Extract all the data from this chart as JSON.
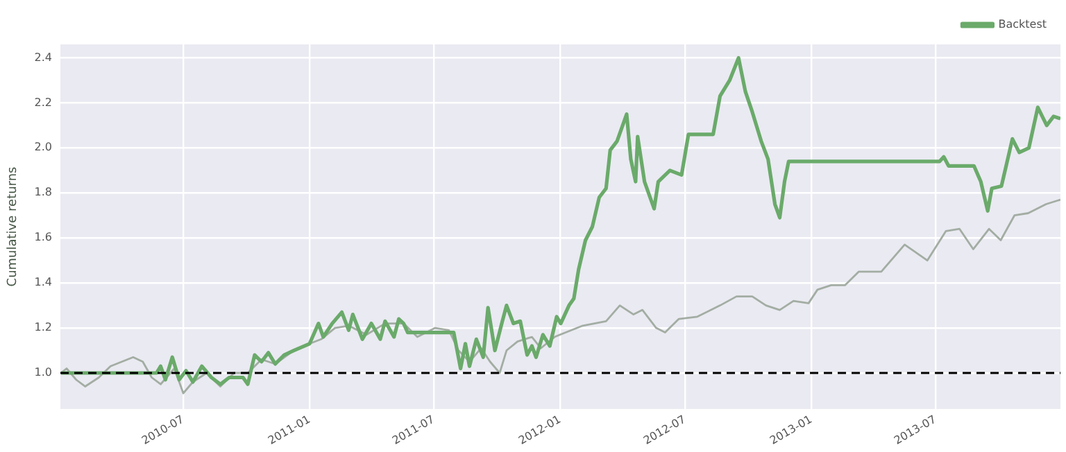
{
  "chart_data": {
    "type": "line",
    "ylabel": "Cumulative returns",
    "xlim": [
      "2010-01-03",
      "2013-12-30"
    ],
    "xticks": [
      "2010-07",
      "2011-01",
      "2011-07",
      "2012-01",
      "2012-07",
      "2013-01",
      "2013-07"
    ],
    "ylim": [
      0.84,
      2.46
    ],
    "yticks": [
      {
        "value": 1,
        "label": "1.0"
      },
      1.2,
      1.4,
      1.6,
      1.8,
      {
        "value": 2,
        "label": "2.0"
      },
      2.2,
      2.4
    ],
    "grid": true,
    "legend": "top right",
    "marker": "none",
    "line_style": "solid",
    "ref_lines": [
      {
        "axis": "y",
        "value": 1.0,
        "color": "#000000",
        "line_style": "dashed"
      }
    ],
    "series": [
      {
        "color": "#a3ada3",
        "x": [
          "2010-01-04",
          "2010-01-12",
          "2010-01-26",
          "2010-02-08",
          "2010-02-28",
          "2010-03-17",
          "2010-04-19",
          "2010-05-03",
          "2010-05-16",
          "2010-05-29",
          "2010-06-18",
          "2010-07-01",
          "2010-07-15",
          "2010-08-04",
          "2010-08-24",
          "2010-09-13",
          "2010-10-03",
          "2010-10-23",
          "2010-11-12",
          "2010-12-09",
          "2011-01-01",
          "2011-01-18",
          "2011-02-07",
          "2011-02-27",
          "2011-03-25",
          "2011-04-21",
          "2011-05-18",
          "2011-06-07",
          "2011-07-03",
          "2011-07-23",
          "2011-08-06",
          "2011-08-22",
          "2011-09-08",
          "2011-09-21",
          "2011-10-05",
          "2011-10-15",
          "2011-10-31",
          "2011-11-21",
          "2011-12-04",
          "2011-12-24",
          "2012-01-01",
          "2012-02-03",
          "2012-03-08",
          "2012-03-28",
          "2012-04-17",
          "2012-04-30",
          "2012-05-20",
          "2012-06-02",
          "2012-06-22",
          "2012-07-19",
          "2012-08-21",
          "2012-09-14",
          "2012-10-07",
          "2012-10-27",
          "2012-11-16",
          "2012-12-06",
          "2012-12-28",
          "2013-01-10",
          "2013-01-30",
          "2013-02-19",
          "2013-03-11",
          "2013-04-13",
          "2013-05-17",
          "2013-06-19",
          "2013-07-16",
          "2013-08-05",
          "2013-08-25",
          "2013-09-17",
          "2013-10-04",
          "2013-10-24",
          "2013-11-13",
          "2013-12-09",
          "2013-12-30"
        ],
        "values": [
          1.0,
          1.02,
          0.97,
          0.94,
          0.98,
          1.03,
          1.07,
          1.05,
          0.98,
          0.95,
          1.02,
          0.91,
          0.96,
          1.0,
          0.94,
          1.0,
          1.0,
          1.06,
          1.04,
          1.1,
          1.13,
          1.15,
          1.2,
          1.21,
          1.17,
          1.22,
          1.22,
          1.16,
          1.2,
          1.19,
          1.1,
          1.05,
          1.11,
          1.05,
          1.0,
          1.1,
          1.14,
          1.16,
          1.11,
          1.16,
          1.17,
          1.21,
          1.23,
          1.3,
          1.26,
          1.28,
          1.2,
          1.18,
          1.24,
          1.25,
          1.3,
          1.34,
          1.34,
          1.3,
          1.28,
          1.32,
          1.31,
          1.37,
          1.39,
          1.39,
          1.45,
          1.45,
          1.57,
          1.5,
          1.63,
          1.64,
          1.55,
          1.64,
          1.59,
          1.7,
          1.71,
          1.75,
          1.77
        ]
      },
      {
        "name": "Backtest",
        "color": "#6aaa6a",
        "x": [
          "2010-01-04",
          "2010-05-23",
          "2010-05-29",
          "2010-06-05",
          "2010-06-15",
          "2010-06-25",
          "2010-07-05",
          "2010-07-15",
          "2010-07-28",
          "2010-08-11",
          "2010-08-24",
          "2010-09-06",
          "2010-09-26",
          "2010-10-03",
          "2010-10-13",
          "2010-10-23",
          "2010-11-02",
          "2010-11-12",
          "2010-11-25",
          "2010-12-09",
          "2011-01-01",
          "2011-01-14",
          "2011-01-21",
          "2011-02-03",
          "2011-02-17",
          "2011-02-27",
          "2011-03-05",
          "2011-03-19",
          "2011-04-01",
          "2011-04-14",
          "2011-04-21",
          "2011-05-04",
          "2011-05-11",
          "2011-05-18",
          "2011-05-24",
          "2011-07-30",
          "2011-08-09",
          "2011-08-16",
          "2011-08-22",
          "2011-09-01",
          "2011-09-11",
          "2011-09-18",
          "2011-09-28",
          "2011-10-08",
          "2011-10-15",
          "2011-10-25",
          "2011-11-04",
          "2011-11-14",
          "2011-11-21",
          "2011-11-27",
          "2011-12-07",
          "2011-12-17",
          "2011-12-27",
          "2012-01-02",
          "2012-01-14",
          "2012-01-21",
          "2012-01-28",
          "2012-02-07",
          "2012-02-17",
          "2012-02-27",
          "2012-03-08",
          "2012-03-14",
          "2012-03-24",
          "2012-04-07",
          "2012-04-13",
          "2012-04-20",
          "2012-04-23",
          "2012-05-03",
          "2012-05-17",
          "2012-05-23",
          "2012-06-09",
          "2012-06-26",
          "2012-07-06",
          "2012-08-11",
          "2012-08-21",
          "2012-09-04",
          "2012-09-17",
          "2012-09-27",
          "2012-10-07",
          "2012-10-20",
          "2012-10-30",
          "2012-11-09",
          "2012-11-16",
          "2012-11-23",
          "2012-11-29",
          "2013-07-07",
          "2013-07-13",
          "2013-07-20",
          "2013-08-26",
          "2013-09-05",
          "2013-09-15",
          "2013-09-21",
          "2013-10-05",
          "2013-10-21",
          "2013-10-31",
          "2013-11-14",
          "2013-11-27",
          "2013-12-10",
          "2013-12-20",
          "2013-12-30"
        ],
        "values": [
          1.0,
          1.0,
          1.03,
          0.97,
          1.07,
          0.97,
          1.01,
          0.96,
          1.03,
          0.98,
          0.95,
          0.98,
          0.98,
          0.95,
          1.08,
          1.05,
          1.09,
          1.04,
          1.08,
          1.1,
          1.13,
          1.22,
          1.16,
          1.22,
          1.27,
          1.19,
          1.26,
          1.15,
          1.22,
          1.15,
          1.23,
          1.16,
          1.24,
          1.22,
          1.18,
          1.18,
          1.02,
          1.13,
          1.03,
          1.15,
          1.07,
          1.29,
          1.1,
          1.22,
          1.3,
          1.22,
          1.23,
          1.08,
          1.12,
          1.07,
          1.17,
          1.12,
          1.25,
          1.22,
          1.3,
          1.33,
          1.46,
          1.59,
          1.65,
          1.78,
          1.82,
          1.99,
          2.03,
          2.15,
          1.95,
          1.85,
          2.05,
          1.85,
          1.73,
          1.85,
          1.9,
          1.88,
          2.06,
          2.06,
          2.23,
          2.3,
          2.4,
          2.25,
          2.16,
          2.03,
          1.95,
          1.75,
          1.69,
          1.85,
          1.94,
          1.94,
          1.96,
          1.92,
          1.92,
          1.85,
          1.72,
          1.82,
          1.83,
          2.04,
          1.98,
          2.0,
          2.18,
          2.1,
          2.14,
          2.13
        ]
      }
    ]
  }
}
